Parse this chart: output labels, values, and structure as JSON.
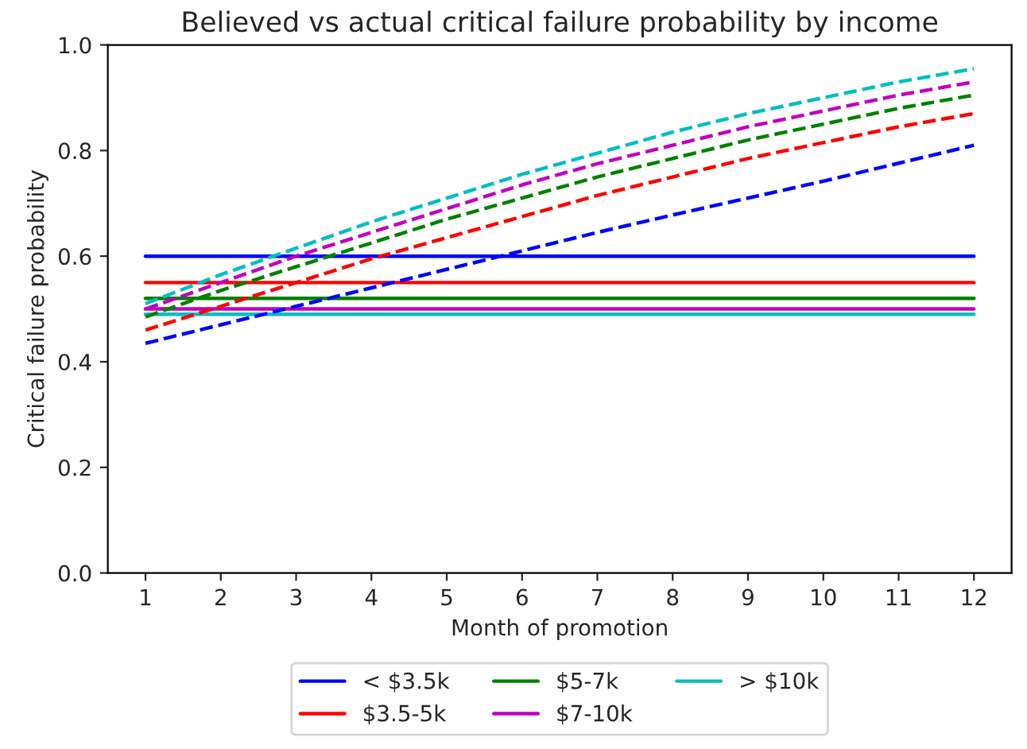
{
  "chart_data": {
    "type": "line",
    "title": "Believed vs actual critical failure probability by income",
    "xlabel": "Month of promotion",
    "ylabel": "Critical failure probability",
    "x": [
      1,
      2,
      3,
      4,
      5,
      6,
      7,
      8,
      9,
      10,
      11,
      12
    ],
    "xlim": [
      0.5,
      12.5
    ],
    "xticks": [
      1,
      2,
      3,
      4,
      5,
      6,
      7,
      8,
      9,
      10,
      11,
      12
    ],
    "ylim": [
      0.0,
      1.0
    ],
    "yticks": [
      {
        "value": 0,
        "label": "0.0"
      },
      0.2,
      0.4,
      0.6,
      0.8,
      {
        "value": 1,
        "label": "1.0"
      }
    ],
    "grid": false,
    "legend": "bottom",
    "marker": "none",
    "series": [
      {
        "name": "< $3.5k",
        "color": "#0000ff",
        "line_style": "solid",
        "values": [
          0.6,
          0.6,
          0.6,
          0.6,
          0.6,
          0.6,
          0.6,
          0.6,
          0.6,
          0.6,
          0.6,
          0.6
        ]
      },
      {
        "name": "$3.5-5k",
        "color": "#ff0000",
        "line_style": "solid",
        "values": [
          0.55,
          0.55,
          0.55,
          0.55,
          0.55,
          0.55,
          0.55,
          0.55,
          0.55,
          0.55,
          0.55,
          0.55
        ]
      },
      {
        "name": "$5-7k",
        "color": "#008000",
        "line_style": "solid",
        "values": [
          0.52,
          0.52,
          0.52,
          0.52,
          0.52,
          0.52,
          0.52,
          0.52,
          0.52,
          0.52,
          0.52,
          0.52
        ]
      },
      {
        "name": "$7-10k",
        "color": "#bf00bf",
        "line_style": "solid",
        "values": [
          0.5,
          0.5,
          0.5,
          0.5,
          0.5,
          0.5,
          0.5,
          0.5,
          0.5,
          0.5,
          0.5,
          0.5
        ]
      },
      {
        "name": "> $10k",
        "color": "#00bfbf",
        "line_style": "solid",
        "values": [
          0.49,
          0.49,
          0.49,
          0.49,
          0.49,
          0.49,
          0.49,
          0.49,
          0.49,
          0.49,
          0.49,
          0.49
        ]
      },
      {
        "color": "#0000ff",
        "line_style": "dashed",
        "values": [
          0.435,
          0.47,
          0.505,
          0.54,
          0.575,
          0.61,
          0.645,
          0.678,
          0.71,
          0.742,
          0.776,
          0.81
        ]
      },
      {
        "color": "#ff0000",
        "line_style": "dashed",
        "values": [
          0.46,
          0.505,
          0.55,
          0.595,
          0.635,
          0.675,
          0.715,
          0.75,
          0.785,
          0.815,
          0.845,
          0.87
        ]
      },
      {
        "color": "#008000",
        "line_style": "dashed",
        "values": [
          0.485,
          0.535,
          0.58,
          0.625,
          0.67,
          0.71,
          0.75,
          0.785,
          0.82,
          0.85,
          0.88,
          0.905
        ]
      },
      {
        "color": "#bf00bf",
        "line_style": "dashed",
        "values": [
          0.5,
          0.55,
          0.6,
          0.645,
          0.69,
          0.735,
          0.775,
          0.81,
          0.845,
          0.875,
          0.905,
          0.93
        ]
      },
      {
        "color": "#00bfbf",
        "line_style": "dashed",
        "values": [
          0.51,
          0.565,
          0.615,
          0.665,
          0.71,
          0.755,
          0.795,
          0.835,
          0.87,
          0.9,
          0.93,
          0.955
        ]
      }
    ]
  }
}
